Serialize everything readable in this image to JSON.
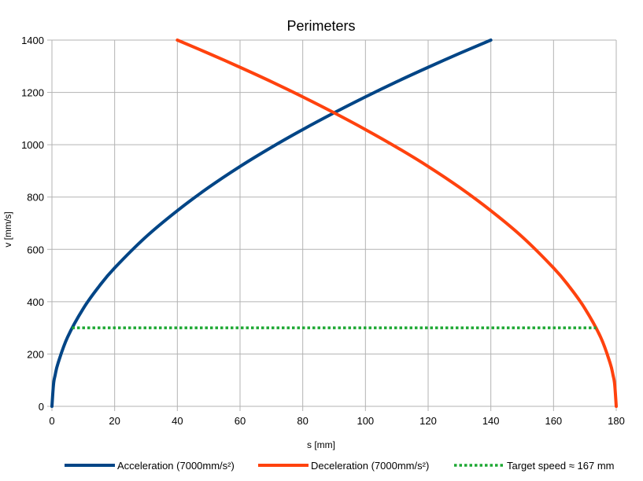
{
  "chart_data": {
    "type": "line",
    "title": "Perimeters",
    "xlabel": "s [mm]",
    "ylabel": "v [mm/s]",
    "xlim": [
      0,
      180
    ],
    "ylim": [
      0,
      1400
    ],
    "x_ticks": [
      0,
      20,
      40,
      60,
      80,
      100,
      120,
      140,
      160,
      180
    ],
    "y_ticks": [
      0,
      200,
      400,
      600,
      800,
      1000,
      1200,
      1400
    ],
    "x_tick_labels": [
      "0",
      "20",
      "40",
      "60",
      "80",
      "100",
      "120",
      "140",
      "160",
      "180"
    ],
    "y_tick_labels": [
      "0",
      "200",
      "400",
      "600",
      "800",
      "1000",
      "1200",
      "1400"
    ],
    "grid": true,
    "legend_position": "bottom",
    "series": [
      {
        "name": "Acceleration (7000mm/s²)",
        "color": "#004586",
        "style": "solid",
        "x": [
          0,
          0.5,
          1,
          2,
          5,
          10,
          15,
          20,
          30,
          40,
          50,
          60,
          70,
          80,
          90,
          100,
          110,
          120,
          130,
          140
        ],
        "y": [
          0,
          84,
          118,
          167,
          265,
          374,
          458,
          529,
          648,
          748,
          837,
          917,
          990,
          1058,
          1122,
          1183,
          1241,
          1296,
          1349,
          1400
        ]
      },
      {
        "name": "Deceleration (7000mm/s²)",
        "color": "#ff420e",
        "style": "solid",
        "x": [
          40,
          50,
          60,
          70,
          80,
          90,
          100,
          110,
          120,
          130,
          140,
          150,
          160,
          165,
          170,
          175,
          178,
          179,
          179.5,
          180
        ],
        "y": [
          1400,
          1349,
          1296,
          1241,
          1183,
          1122,
          1058,
          990,
          917,
          837,
          748,
          648,
          529,
          458,
          374,
          265,
          167,
          118,
          84,
          0
        ]
      },
      {
        "name": "Target speed ≈ 167 mm",
        "color": "#1da833",
        "style": "dotted",
        "x": [
          6.4,
          173.6
        ],
        "y": [
          300,
          300
        ]
      }
    ]
  }
}
